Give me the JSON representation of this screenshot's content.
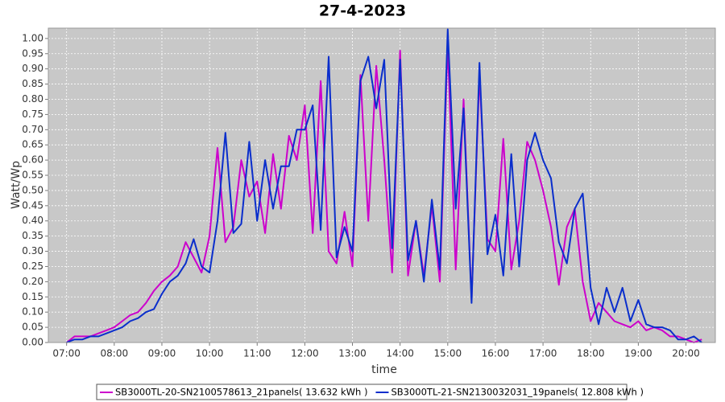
{
  "chart_data": {
    "type": "line",
    "title": "27-4-2023",
    "x_label": "time",
    "y_label": "Watt/Wp",
    "x": [
      "07:00",
      "07:10",
      "07:20",
      "07:30",
      "07:40",
      "07:50",
      "08:00",
      "08:10",
      "08:20",
      "08:30",
      "08:40",
      "08:50",
      "09:00",
      "09:10",
      "09:20",
      "09:30",
      "09:40",
      "09:50",
      "10:00",
      "10:10",
      "10:20",
      "10:30",
      "10:40",
      "10:50",
      "11:00",
      "11:10",
      "11:20",
      "11:30",
      "11:40",
      "11:50",
      "12:00",
      "12:10",
      "12:20",
      "12:30",
      "12:40",
      "12:50",
      "13:00",
      "13:10",
      "13:20",
      "13:30",
      "13:40",
      "13:50",
      "14:00",
      "14:10",
      "14:20",
      "14:30",
      "14:40",
      "14:50",
      "15:00",
      "15:10",
      "15:20",
      "15:30",
      "15:40",
      "15:50",
      "16:00",
      "16:10",
      "16:20",
      "16:30",
      "16:40",
      "16:50",
      "17:00",
      "17:10",
      "17:20",
      "17:30",
      "17:40",
      "17:50",
      "18:00",
      "18:10",
      "18:20",
      "18:30",
      "18:40",
      "18:50",
      "19:00",
      "19:10",
      "19:20",
      "19:30",
      "19:40",
      "19:50",
      "20:00",
      "20:10",
      "20:20"
    ],
    "series": [
      {
        "name": "SB3000TL-20-SN2100578613_21panels( 13.632 kWh )",
        "color": "#cc00cc",
        "values": [
          0.0,
          0.02,
          0.02,
          0.02,
          0.03,
          0.04,
          0.05,
          0.07,
          0.09,
          0.1,
          0.13,
          0.17,
          0.2,
          0.22,
          0.25,
          0.33,
          0.28,
          0.23,
          0.35,
          0.64,
          0.33,
          0.38,
          0.6,
          0.48,
          0.53,
          0.36,
          0.62,
          0.44,
          0.68,
          0.6,
          0.78,
          0.36,
          0.86,
          0.3,
          0.26,
          0.43,
          0.25,
          0.88,
          0.4,
          0.91,
          0.6,
          0.23,
          0.96,
          0.22,
          0.4,
          0.22,
          0.45,
          0.2,
          0.98,
          0.24,
          0.8,
          0.14,
          0.88,
          0.34,
          0.3,
          0.67,
          0.24,
          0.4,
          0.66,
          0.6,
          0.5,
          0.38,
          0.19,
          0.38,
          0.44,
          0.2,
          0.07,
          0.13,
          0.1,
          0.07,
          0.06,
          0.05,
          0.07,
          0.04,
          0.05,
          0.04,
          0.02,
          0.02,
          0.01,
          0.0,
          0.01
        ]
      },
      {
        "name": "SB3000TL-21-SN2130032031_19panels( 12.808 kWh )",
        "color": "#0a2ecc",
        "values": [
          0.0,
          0.01,
          0.01,
          0.02,
          0.02,
          0.03,
          0.04,
          0.05,
          0.07,
          0.08,
          0.1,
          0.11,
          0.16,
          0.2,
          0.22,
          0.26,
          0.34,
          0.25,
          0.23,
          0.4,
          0.69,
          0.36,
          0.39,
          0.66,
          0.4,
          0.6,
          0.44,
          0.58,
          0.58,
          0.7,
          0.7,
          0.78,
          0.37,
          0.94,
          0.28,
          0.38,
          0.3,
          0.86,
          0.94,
          0.77,
          0.93,
          0.31,
          0.93,
          0.27,
          0.4,
          0.2,
          0.47,
          0.24,
          1.03,
          0.44,
          0.77,
          0.13,
          0.92,
          0.29,
          0.42,
          0.22,
          0.62,
          0.25,
          0.6,
          0.69,
          0.6,
          0.54,
          0.33,
          0.26,
          0.44,
          0.49,
          0.18,
          0.06,
          0.18,
          0.1,
          0.18,
          0.07,
          0.14,
          0.06,
          0.05,
          0.05,
          0.04,
          0.01,
          0.01,
          0.02,
          0.0
        ]
      }
    ],
    "xlim": [
      "06:37",
      "20:37"
    ],
    "xticks": [
      "07:00",
      "08:00",
      "09:00",
      "10:00",
      "11:00",
      "12:00",
      "13:00",
      "14:00",
      "15:00",
      "16:00",
      "17:00",
      "18:00",
      "19:00",
      "20:00"
    ],
    "ylim": [
      0,
      1.034
    ],
    "yticks": [
      {
        "value": 0,
        "label": "0.00"
      },
      {
        "value": 0.05,
        "label": "0.05"
      },
      {
        "value": 0.1,
        "label": "0.10"
      },
      {
        "value": 0.15,
        "label": "0.15"
      },
      {
        "value": 0.2,
        "label": "0.20"
      },
      {
        "value": 0.25,
        "label": "0.25"
      },
      {
        "value": 0.3,
        "label": "0.30"
      },
      {
        "value": 0.35,
        "label": "0.35"
      },
      {
        "value": 0.4,
        "label": "0.40"
      },
      {
        "value": 0.45,
        "label": "0.45"
      },
      {
        "value": 0.5,
        "label": "0.50"
      },
      {
        "value": 0.55,
        "label": "0.55"
      },
      {
        "value": 0.6,
        "label": "0.60"
      },
      {
        "value": 0.65,
        "label": "0.65"
      },
      {
        "value": 0.7,
        "label": "0.70"
      },
      {
        "value": 0.75,
        "label": "0.75"
      },
      {
        "value": 0.8,
        "label": "0.80"
      },
      {
        "value": 0.85,
        "label": "0.85"
      },
      {
        "value": 0.9,
        "label": "0.90"
      },
      {
        "value": 0.95,
        "label": "0.95"
      },
      {
        "value": 1,
        "label": "1.00"
      }
    ],
    "grid": true,
    "legend": "bottom"
  }
}
